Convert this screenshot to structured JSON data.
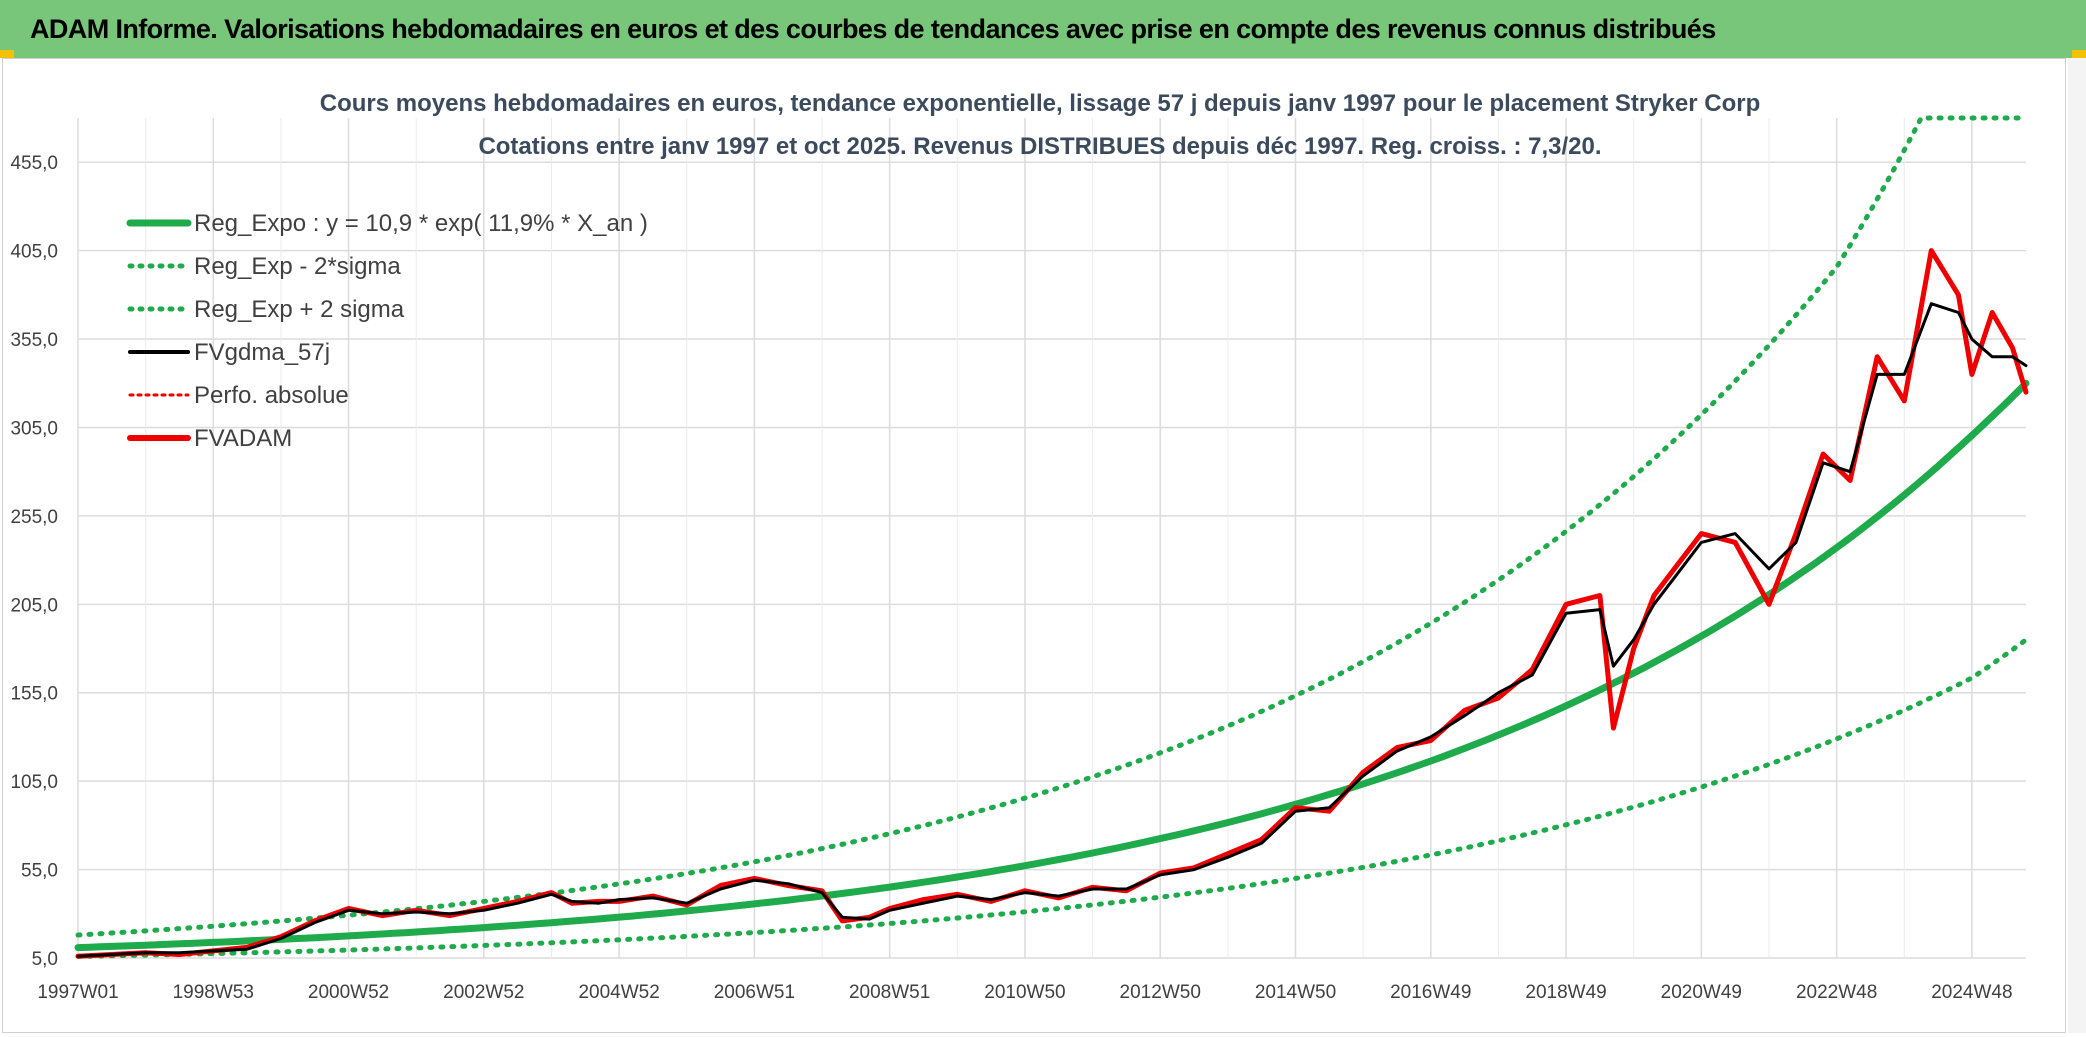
{
  "banner": {
    "title": "ADAM Informe. Valorisations hebdomadaires en euros et des courbes de tendances avec prise en compte des revenus connus distribués"
  },
  "colors": {
    "banner_bg": "#78c679",
    "reg_expo": "#1faa4b",
    "fvgdma": "#000000",
    "fvadam": "#ee0000",
    "perfo": "#ee0000",
    "grid": "#dcdcdc"
  },
  "chart_data": {
    "type": "line",
    "title": "Cours moyens hebdomadaires en euros, tendance exponentielle, lissage 57 j depuis janv 1997 pour le placement Stryker Corp",
    "subtitle": "Cotations entre janv 1997 et oct 2025. Revenus DISTRIBUES depuis déc 1997. Reg. croiss. : 7,3/20.",
    "xlabel": "",
    "ylabel": "",
    "x_start": "1997W01",
    "x_end": "2025W43",
    "x_ticks": [
      "1997W01",
      "1998W53",
      "2000W52",
      "2002W52",
      "2004W52",
      "2006W51",
      "2008W51",
      "2010W50",
      "2012W50",
      "2014W50",
      "2016W49",
      "2018W49",
      "2020W49",
      "2022W48",
      "2024W48"
    ],
    "x_tick_years": [
      1997.0,
      1999.0,
      2001.0,
      2003.0,
      2005.0,
      2007.0,
      2009.0,
      2011.0,
      2013.0,
      2015.0,
      2017.0,
      2019.0,
      2021.0,
      2023.0,
      2025.0
    ],
    "y_ticks": [
      "5,0",
      "55,0",
      "105,0",
      "155,0",
      "205,0",
      "255,0",
      "305,0",
      "355,0",
      "405,0",
      "455,0"
    ],
    "ylim": [
      5,
      480
    ],
    "grid": true,
    "legend_position": "top-left",
    "legend": [
      {
        "label": "Reg_Expo : y = 10,9 * exp( 11,9% *  X_an )",
        "color": "#1faa4b",
        "style": "solid-thick"
      },
      {
        "label": "Reg_Exp - 2*sigma",
        "color": "#1faa4b",
        "style": "dotted"
      },
      {
        "label": "Reg_Exp + 2 sigma",
        "color": "#1faa4b",
        "style": "dotted"
      },
      {
        "label": "FVgdma_57j",
        "color": "#000000",
        "style": "solid"
      },
      {
        "label": "Perfo. absolue",
        "color": "#ee0000",
        "style": "dotted"
      },
      {
        "label": "FVADAM",
        "color": "#ee0000",
        "style": "solid-thick"
      }
    ],
    "series": [
      {
        "name": "Reg_Expo : y = 10,9 * exp( 11,9% *  X_an )",
        "x": [
          1997,
          1999,
          2001,
          2003,
          2005,
          2007,
          2009,
          2011,
          2013,
          2015,
          2017,
          2019,
          2021,
          2023,
          2025,
          2025.8
        ],
        "values": [
          10.9,
          13.8,
          17.5,
          22.2,
          28.1,
          35.6,
          45.1,
          57.2,
          72.5,
          91.9,
          116.4,
          147.6,
          187.0,
          237.0,
          300.5,
          330.0
        ]
      },
      {
        "name": "Reg_Exp - 2*sigma",
        "x": [
          1997,
          1999,
          2001,
          2003,
          2005,
          2007,
          2009,
          2011,
          2013,
          2015,
          2017,
          2019,
          2021,
          2023,
          2025,
          2025.8
        ],
        "values": [
          5.9,
          7.5,
          9.5,
          12.1,
          15.3,
          19.4,
          24.5,
          31.1,
          39.4,
          50.0,
          63.3,
          80.3,
          101.7,
          128.9,
          163.4,
          185.0
        ]
      },
      {
        "name": "Reg_Exp + 2 sigma",
        "x": [
          1997,
          1999,
          2001,
          2003,
          2005,
          2007,
          2009,
          2011,
          2013,
          2015,
          2017,
          2019,
          2021,
          2023,
          2024.25,
          2025.8
        ],
        "values": [
          18.0,
          23.0,
          29.2,
          37.0,
          46.9,
          59.4,
          75.3,
          95.4,
          121.0,
          153.3,
          194.3,
          246.3,
          312.2,
          395.7,
          480.0,
          480.0
        ]
      },
      {
        "name": "FVgdma_57j",
        "x": [
          1997.0,
          1997.5,
          1998.0,
          1998.5,
          1999.0,
          1999.5,
          2000.0,
          2000.5,
          2001.0,
          2001.5,
          2002.0,
          2002.5,
          2003.0,
          2003.5,
          2004.0,
          2004.3,
          2004.7,
          2005.0,
          2005.5,
          2006.0,
          2006.5,
          2007.0,
          2007.5,
          2008.0,
          2008.3,
          2008.7,
          2009.0,
          2009.5,
          2010.0,
          2010.5,
          2011.0,
          2011.5,
          2012.0,
          2012.5,
          2013.0,
          2013.5,
          2014.0,
          2014.5,
          2015.0,
          2015.5,
          2016.0,
          2016.5,
          2017.0,
          2017.5,
          2018.0,
          2018.5,
          2019.0,
          2019.5,
          2019.7,
          2020.0,
          2020.3,
          2020.6,
          2021.0,
          2021.5,
          2022.0,
          2022.4,
          2022.8,
          2023.2,
          2023.6,
          2024.0,
          2024.4,
          2024.8,
          2025.0,
          2025.3,
          2025.6,
          2025.8
        ],
        "values": [
          6,
          7,
          8,
          8,
          9,
          10,
          16,
          25,
          32,
          30,
          31,
          30,
          32,
          36,
          41,
          37,
          36,
          38,
          39,
          36,
          44,
          49,
          47,
          42,
          28,
          27,
          32,
          36,
          40,
          38,
          42,
          40,
          44,
          44,
          52,
          55,
          62,
          70,
          88,
          90,
          108,
          122,
          130,
          142,
          155,
          165,
          200,
          202,
          170,
          185,
          205,
          220,
          240,
          245,
          225,
          240,
          285,
          280,
          335,
          335,
          375,
          370,
          355,
          345,
          345,
          340
        ]
      },
      {
        "name": "FVADAM",
        "x": [
          1997.0,
          1997.5,
          1998.0,
          1998.5,
          1999.0,
          1999.5,
          2000.0,
          2000.5,
          2001.0,
          2001.5,
          2002.0,
          2002.5,
          2003.0,
          2003.5,
          2004.0,
          2004.3,
          2004.7,
          2005.0,
          2005.5,
          2006.0,
          2006.5,
          2007.0,
          2007.5,
          2008.0,
          2008.3,
          2008.7,
          2009.0,
          2009.5,
          2010.0,
          2010.5,
          2011.0,
          2011.5,
          2012.0,
          2012.5,
          2013.0,
          2013.5,
          2014.0,
          2014.5,
          2015.0,
          2015.5,
          2016.0,
          2016.5,
          2017.0,
          2017.5,
          2018.0,
          2018.5,
          2019.0,
          2019.5,
          2019.7,
          2020.0,
          2020.3,
          2020.6,
          2021.0,
          2021.5,
          2022.0,
          2022.4,
          2022.8,
          2023.2,
          2023.6,
          2024.0,
          2024.4,
          2024.8,
          2025.0,
          2025.3,
          2025.6,
          2025.8
        ],
        "values": [
          6,
          7,
          8,
          7,
          9,
          11,
          17,
          26,
          33,
          29,
          32,
          29,
          33,
          37,
          42,
          36,
          37,
          37,
          40,
          35,
          46,
          50,
          46,
          43,
          26,
          28,
          33,
          38,
          41,
          37,
          43,
          39,
          45,
          43,
          53,
          56,
          64,
          72,
          90,
          88,
          110,
          124,
          128,
          145,
          152,
          168,
          205,
          210,
          135,
          180,
          210,
          225,
          245,
          240,
          205,
          245,
          290,
          275,
          345,
          320,
          405,
          380,
          335,
          370,
          350,
          325
        ]
      }
    ]
  }
}
